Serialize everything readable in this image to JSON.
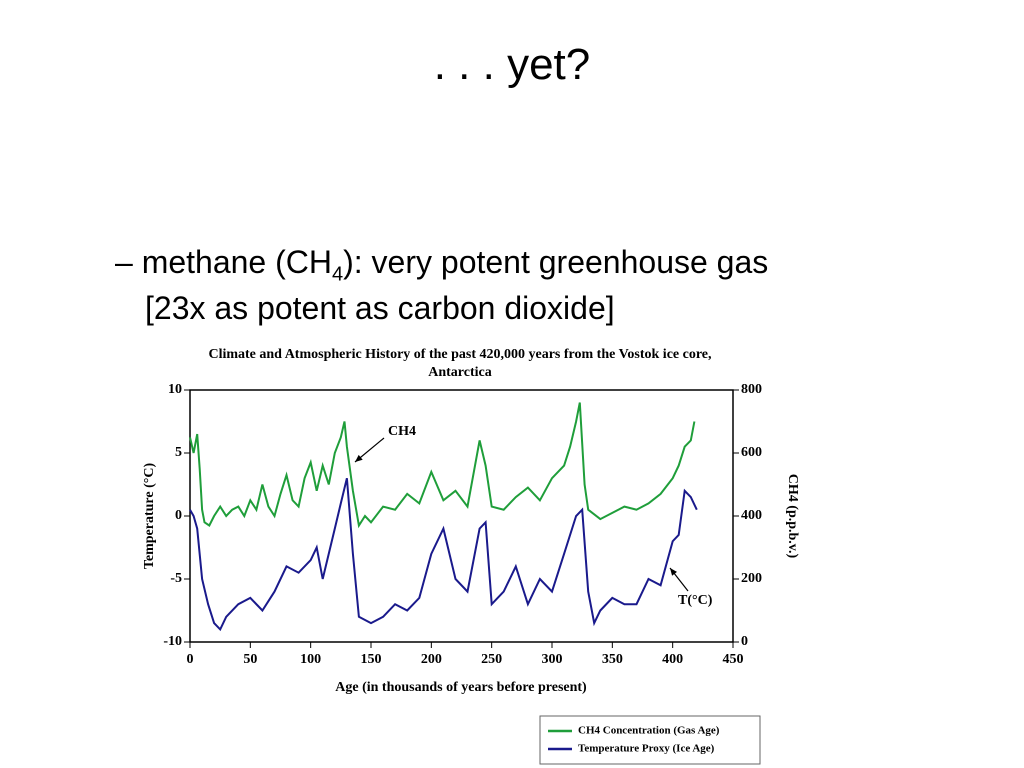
{
  "slide": {
    "title": ". . . yet?",
    "bullet": {
      "dash": "–",
      "part1": "methane (CH",
      "sub": "4",
      "part2": "):  very potent greenhouse gas",
      "line2": "[23x as potent as carbon dioxide]"
    }
  },
  "chart_data": {
    "type": "line",
    "title": "Climate and Atmospheric History of the past 420,000 years from the Vostok ice core, Antarctica",
    "xlabel": "Age (in thousands of years before present)",
    "ylabel": "Temperature (°C)",
    "y2label": "CH4 (p.p.b.v.)",
    "xlim": [
      0,
      450
    ],
    "xticks": [
      0,
      50,
      100,
      150,
      200,
      250,
      300,
      350,
      400,
      450
    ],
    "ylim": [
      -10,
      10
    ],
    "yticks": [
      -10,
      -5,
      0,
      5,
      10
    ],
    "y2lim": [
      0,
      800
    ],
    "y2ticks": [
      0,
      200,
      400,
      600,
      800
    ],
    "annotations": [
      {
        "text": "CH4"
      },
      {
        "text": "T(°C)"
      }
    ],
    "series": [
      {
        "name": "CH4 Concentration (Gas Age)",
        "color": "#1f9e3a",
        "axis": "y2",
        "x": [
          0,
          3,
          6,
          8,
          10,
          12,
          16,
          20,
          25,
          30,
          35,
          40,
          45,
          50,
          55,
          60,
          65,
          70,
          75,
          80,
          85,
          90,
          95,
          100,
          105,
          110,
          115,
          120,
          125,
          128,
          130,
          135,
          140,
          145,
          150,
          160,
          170,
          180,
          190,
          200,
          210,
          220,
          230,
          240,
          245,
          250,
          260,
          270,
          280,
          290,
          300,
          310,
          315,
          320,
          323,
          327,
          330,
          340,
          350,
          360,
          370,
          380,
          390,
          400,
          405,
          410,
          415,
          418
        ],
        "values": [
          650,
          600,
          660,
          550,
          420,
          380,
          370,
          400,
          430,
          400,
          420,
          430,
          400,
          450,
          420,
          500,
          430,
          400,
          470,
          530,
          450,
          430,
          520,
          570,
          480,
          560,
          500,
          600,
          650,
          700,
          620,
          480,
          370,
          400,
          380,
          430,
          420,
          470,
          440,
          540,
          450,
          480,
          430,
          640,
          560,
          430,
          420,
          460,
          490,
          450,
          520,
          560,
          620,
          700,
          760,
          500,
          420,
          390,
          410,
          430,
          420,
          440,
          470,
          520,
          560,
          620,
          640,
          700
        ]
      },
      {
        "name": "Temperature Proxy (Ice Age)",
        "color": "#1a1a8c",
        "axis": "y",
        "x": [
          0,
          3,
          6,
          10,
          15,
          20,
          25,
          30,
          40,
          50,
          60,
          70,
          80,
          90,
          100,
          105,
          110,
          120,
          125,
          130,
          135,
          140,
          150,
          160,
          170,
          180,
          190,
          200,
          210,
          220,
          230,
          240,
          245,
          250,
          260,
          270,
          280,
          290,
          300,
          310,
          320,
          325,
          330,
          335,
          340,
          350,
          360,
          370,
          380,
          390,
          400,
          405,
          410,
          415,
          420
        ],
        "values": [
          0.5,
          0,
          -1,
          -5,
          -7,
          -8.5,
          -9,
          -8,
          -7,
          -6.5,
          -7.5,
          -6,
          -4,
          -4.5,
          -3.5,
          -2.5,
          -5,
          -1,
          1,
          3,
          -3,
          -8,
          -8.5,
          -8,
          -7,
          -7.5,
          -6.5,
          -3,
          -1,
          -5,
          -6,
          -1,
          -0.5,
          -7,
          -6,
          -4,
          -7,
          -5,
          -6,
          -3,
          0,
          0.5,
          -6,
          -8.5,
          -7.5,
          -6.5,
          -7,
          -7,
          -5,
          -5.5,
          -2,
          -1.5,
          2,
          1.5,
          0.5
        ]
      }
    ]
  }
}
